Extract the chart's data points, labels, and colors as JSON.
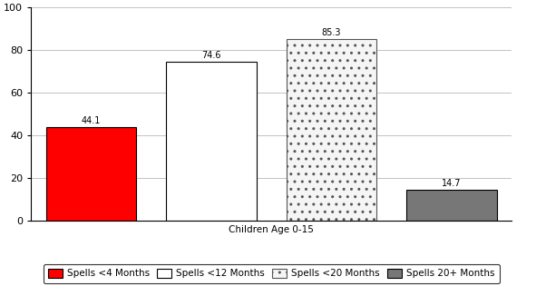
{
  "bars": [
    {
      "label": "Spells <4 Months",
      "value": 44.1,
      "color": "#ff0000",
      "hatch": null,
      "edgecolor": "#000000"
    },
    {
      "label": "Spells <12 Months",
      "value": 74.6,
      "color": "#ffffff",
      "hatch": null,
      "edgecolor": "#000000"
    },
    {
      "label": "Spells <20 Months",
      "value": 85.3,
      "color": "#f5f5f5",
      "hatch": "..",
      "edgecolor": "#555555"
    },
    {
      "label": "Spells 20+ Months",
      "value": 14.7,
      "color": "#777777",
      "hatch": null,
      "edgecolor": "#000000"
    }
  ],
  "ylim": [
    0,
    100
  ],
  "yticks": [
    0,
    20,
    40,
    60,
    80,
    100
  ],
  "xlabel": "Children Age 0-15",
  "bar_width": 0.75,
  "bar_positions": [
    0.5,
    1.5,
    2.5,
    3.5
  ],
  "xlim": [
    0,
    4.0
  ],
  "figure_bg": "#ffffff",
  "axes_bg": "#ffffff",
  "legend_fontsize": 7.5,
  "label_fontsize": 7,
  "tick_fontsize": 8,
  "xlabel_fontsize": 7.5,
  "grid_color": "#aaaaaa",
  "grid_lw": 0.5
}
